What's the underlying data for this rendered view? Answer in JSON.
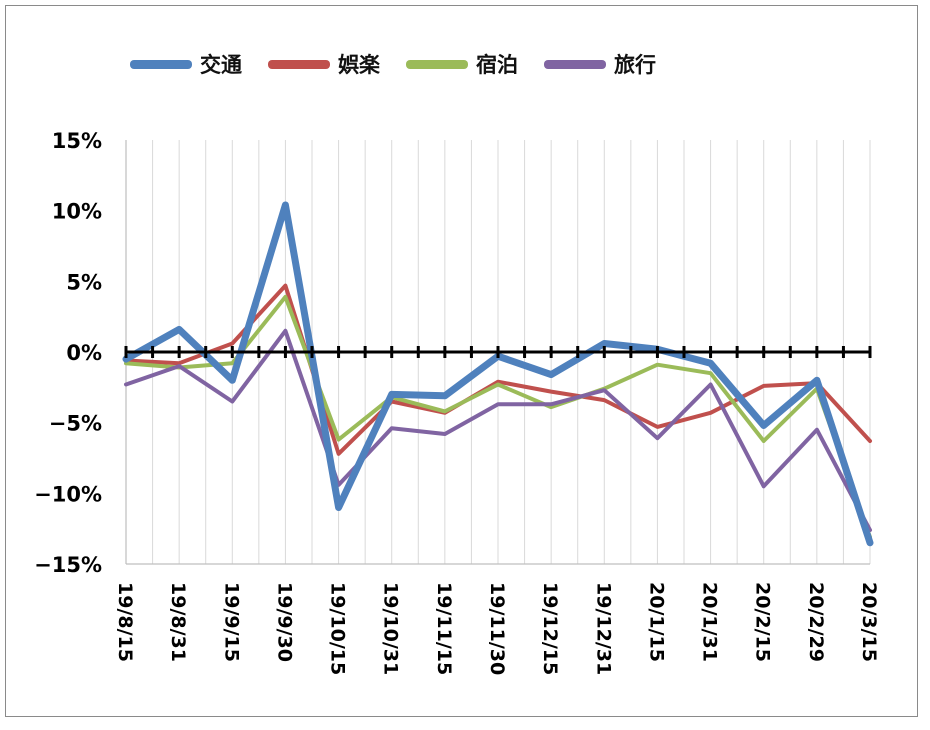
{
  "chart_data": {
    "type": "line",
    "title": "",
    "xlabel": "",
    "ylabel": "",
    "ylim": [
      -15,
      15
    ],
    "yticks": [
      "15%",
      "10%",
      "5%",
      "0%",
      "−5%",
      "−10%",
      "−15%"
    ],
    "ytick_values": [
      15,
      10,
      5,
      0,
      -5,
      -10,
      -15
    ],
    "categories": [
      "19/8/15",
      "19/8/31",
      "19/9/15",
      "19/9/30",
      "19/10/15",
      "19/10/31",
      "19/11/15",
      "19/11/30",
      "19/12/15",
      "19/12/31",
      "20/1/15",
      "20/1/31",
      "20/2/15",
      "20/2/29",
      "20/3/15"
    ],
    "grid": "vertical",
    "legend_position": "top",
    "series": [
      {
        "name": "交通",
        "color": "#4F81BD",
        "width": 7,
        "values": [
          -0.5,
          1.6,
          -2.0,
          10.4,
          -11.0,
          -3.0,
          -3.1,
          -0.3,
          -1.6,
          0.6,
          0.2,
          -0.8,
          -5.2,
          -2.0,
          -13.5
        ]
      },
      {
        "name": "娯楽",
        "color": "#C0504D",
        "width": 4,
        "values": [
          -0.6,
          -0.8,
          0.6,
          4.7,
          -7.2,
          -3.5,
          -4.3,
          -2.1,
          -2.8,
          -3.4,
          -5.3,
          -4.3,
          -2.4,
          -2.2,
          -6.3
        ]
      },
      {
        "name": "宿泊",
        "color": "#9BBB59",
        "width": 4,
        "values": [
          -0.8,
          -1.1,
          -0.8,
          3.9,
          -6.2,
          -3.2,
          -4.2,
          -2.3,
          -3.9,
          -2.6,
          -0.9,
          -1.5,
          -6.3,
          -2.6,
          -13.1
        ]
      },
      {
        "name": "旅行",
        "color": "#8064A2",
        "width": 4,
        "values": [
          -2.3,
          -1.0,
          -3.5,
          1.5,
          -9.4,
          -5.4,
          -5.8,
          -3.7,
          -3.7,
          -2.7,
          -6.1,
          -2.3,
          -9.5,
          -5.5,
          -12.6
        ]
      }
    ]
  }
}
